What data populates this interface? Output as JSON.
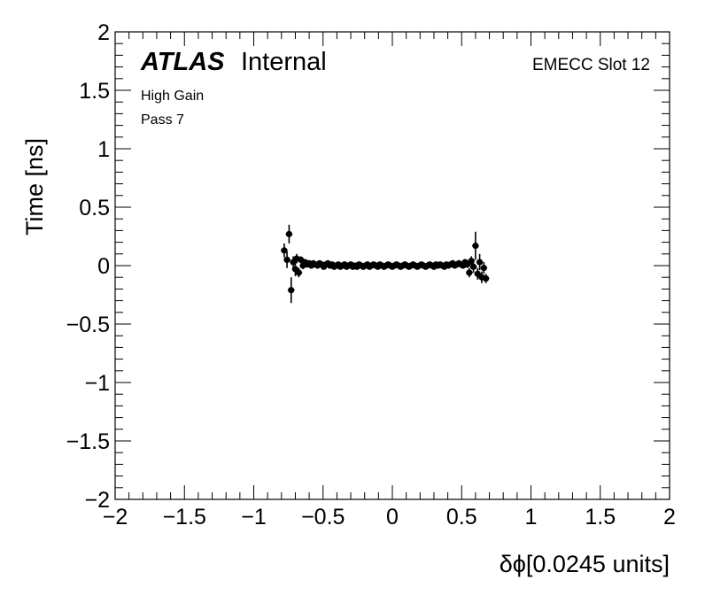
{
  "chart_data": {
    "type": "scatter",
    "title": "",
    "xlabel": "δϕ[0.0245 units]",
    "ylabel": "Time [ns]",
    "xlim": [
      -2,
      2
    ],
    "ylim": [
      -2,
      2
    ],
    "x_tick_labels": [
      "−2",
      "−1.5",
      "−1",
      "−0.5",
      "0",
      "0.5",
      "1",
      "1.5",
      "2"
    ],
    "y_tick_labels": [
      "−2",
      "−1.5",
      "−1",
      "−0.5",
      "0",
      "0.5",
      "1",
      "1.5",
      "2"
    ],
    "x_ticks": [
      -2,
      -1.5,
      -1,
      -0.5,
      0,
      0.5,
      1,
      1.5,
      2
    ],
    "y_ticks": [
      -2,
      -1.5,
      -1,
      -0.5,
      0,
      0.5,
      1,
      1.5,
      2
    ],
    "grid": false,
    "legend": "none",
    "labels": {
      "experiment": "ATLAS",
      "status": "Internal",
      "gain": "High Gain",
      "pass": "Pass 7",
      "slot": "EMECC Slot 12"
    },
    "colors": {
      "marker": "#000000",
      "frame": "#000000",
      "background": "#ffffff"
    },
    "series": [
      {
        "points": [
          {
            "x": -0.78,
            "y": 0.13,
            "err": 0.06
          },
          {
            "x": -0.76,
            "y": 0.05,
            "err": 0.07
          },
          {
            "x": -0.745,
            "y": 0.27,
            "err": 0.08
          },
          {
            "x": -0.73,
            "y": -0.21,
            "err": 0.11
          },
          {
            "x": -0.715,
            "y": 0.03,
            "err": 0.05
          },
          {
            "x": -0.7,
            "y": -0.03,
            "err": 0.06
          },
          {
            "x": -0.69,
            "y": 0.06,
            "err": 0.04
          },
          {
            "x": -0.675,
            "y": -0.06,
            "err": 0.04
          },
          {
            "x": -0.66,
            "y": 0.05,
            "err": 0.03
          },
          {
            "x": -0.645,
            "y": 0.0,
            "err": 0.03
          },
          {
            "x": -0.63,
            "y": 0.03,
            "err": 0.02
          },
          {
            "x": -0.615,
            "y": 0.01,
            "err": 0.02
          },
          {
            "x": -0.6,
            "y": 0.02,
            "err": 0.02
          },
          {
            "x": -0.585,
            "y": 0.0,
            "err": 0.015
          },
          {
            "x": -0.57,
            "y": 0.02,
            "err": 0.015
          },
          {
            "x": -0.555,
            "y": 0.01,
            "err": 0.015
          },
          {
            "x": -0.54,
            "y": 0.0,
            "err": 0.015
          },
          {
            "x": -0.525,
            "y": 0.02,
            "err": 0.015
          },
          {
            "x": -0.51,
            "y": 0.01,
            "err": 0.015
          },
          {
            "x": -0.495,
            "y": -0.01,
            "err": 0.015
          },
          {
            "x": -0.48,
            "y": 0.01,
            "err": 0.015
          },
          {
            "x": -0.465,
            "y": 0.02,
            "err": 0.015
          },
          {
            "x": -0.45,
            "y": 0.0,
            "err": 0.015
          },
          {
            "x": -0.435,
            "y": 0.01,
            "err": 0.015
          },
          {
            "x": -0.42,
            "y": -0.01,
            "err": 0.015
          },
          {
            "x": -0.405,
            "y": 0.0,
            "err": 0.015
          },
          {
            "x": -0.39,
            "y": 0.01,
            "err": 0.015
          },
          {
            "x": -0.375,
            "y": -0.01,
            "err": 0.015
          },
          {
            "x": -0.36,
            "y": 0.0,
            "err": 0.015
          },
          {
            "x": -0.345,
            "y": 0.01,
            "err": 0.015
          },
          {
            "x": -0.33,
            "y": -0.01,
            "err": 0.015
          },
          {
            "x": -0.315,
            "y": 0.0,
            "err": 0.015
          },
          {
            "x": -0.3,
            "y": 0.01,
            "err": 0.015
          },
          {
            "x": -0.285,
            "y": -0.01,
            "err": 0.015
          },
          {
            "x": -0.27,
            "y": 0.0,
            "err": 0.015
          },
          {
            "x": -0.255,
            "y": -0.01,
            "err": 0.015
          },
          {
            "x": -0.24,
            "y": 0.01,
            "err": 0.015
          },
          {
            "x": -0.225,
            "y": 0.0,
            "err": 0.015
          },
          {
            "x": -0.21,
            "y": -0.01,
            "err": 0.015
          },
          {
            "x": -0.195,
            "y": 0.0,
            "err": 0.015
          },
          {
            "x": -0.18,
            "y": 0.01,
            "err": 0.015
          },
          {
            "x": -0.165,
            "y": -0.01,
            "err": 0.015
          },
          {
            "x": -0.15,
            "y": 0.0,
            "err": 0.015
          },
          {
            "x": -0.135,
            "y": 0.01,
            "err": 0.015
          },
          {
            "x": -0.12,
            "y": 0.0,
            "err": 0.015
          },
          {
            "x": -0.105,
            "y": -0.01,
            "err": 0.015
          },
          {
            "x": -0.09,
            "y": 0.01,
            "err": 0.015
          },
          {
            "x": -0.075,
            "y": 0.0,
            "err": 0.015
          },
          {
            "x": -0.06,
            "y": -0.01,
            "err": 0.015
          },
          {
            "x": -0.045,
            "y": 0.0,
            "err": 0.015
          },
          {
            "x": -0.03,
            "y": 0.01,
            "err": 0.015
          },
          {
            "x": -0.015,
            "y": 0.0,
            "err": 0.015
          },
          {
            "x": 0.0,
            "y": -0.01,
            "err": 0.015
          },
          {
            "x": 0.015,
            "y": 0.0,
            "err": 0.015
          },
          {
            "x": 0.03,
            "y": 0.01,
            "err": 0.015
          },
          {
            "x": 0.045,
            "y": 0.0,
            "err": 0.015
          },
          {
            "x": 0.06,
            "y": -0.01,
            "err": 0.015
          },
          {
            "x": 0.075,
            "y": 0.0,
            "err": 0.015
          },
          {
            "x": 0.09,
            "y": 0.01,
            "err": 0.015
          },
          {
            "x": 0.105,
            "y": 0.0,
            "err": 0.015
          },
          {
            "x": 0.12,
            "y": -0.01,
            "err": 0.015
          },
          {
            "x": 0.135,
            "y": 0.0,
            "err": 0.015
          },
          {
            "x": 0.15,
            "y": 0.01,
            "err": 0.015
          },
          {
            "x": 0.165,
            "y": 0.0,
            "err": 0.015
          },
          {
            "x": 0.18,
            "y": -0.01,
            "err": 0.015
          },
          {
            "x": 0.195,
            "y": 0.0,
            "err": 0.015
          },
          {
            "x": 0.21,
            "y": 0.01,
            "err": 0.015
          },
          {
            "x": 0.225,
            "y": 0.0,
            "err": 0.015
          },
          {
            "x": 0.24,
            "y": -0.01,
            "err": 0.015
          },
          {
            "x": 0.255,
            "y": 0.0,
            "err": 0.015
          },
          {
            "x": 0.27,
            "y": 0.01,
            "err": 0.015
          },
          {
            "x": 0.285,
            "y": 0.0,
            "err": 0.015
          },
          {
            "x": 0.3,
            "y": -0.01,
            "err": 0.015
          },
          {
            "x": 0.315,
            "y": 0.01,
            "err": 0.015
          },
          {
            "x": 0.33,
            "y": 0.0,
            "err": 0.015
          },
          {
            "x": 0.345,
            "y": 0.01,
            "err": 0.015
          },
          {
            "x": 0.36,
            "y": 0.0,
            "err": 0.015
          },
          {
            "x": 0.375,
            "y": -0.01,
            "err": 0.015
          },
          {
            "x": 0.39,
            "y": 0.01,
            "err": 0.015
          },
          {
            "x": 0.405,
            "y": 0.0,
            "err": 0.015
          },
          {
            "x": 0.42,
            "y": 0.01,
            "err": 0.015
          },
          {
            "x": 0.435,
            "y": 0.02,
            "err": 0.015
          },
          {
            "x": 0.45,
            "y": 0.0,
            "err": 0.015
          },
          {
            "x": 0.465,
            "y": 0.01,
            "err": 0.02
          },
          {
            "x": 0.48,
            "y": 0.02,
            "err": 0.02
          },
          {
            "x": 0.495,
            "y": 0.01,
            "err": 0.02
          },
          {
            "x": 0.51,
            "y": 0.0,
            "err": 0.02
          },
          {
            "x": 0.525,
            "y": 0.03,
            "err": 0.02
          },
          {
            "x": 0.54,
            "y": 0.01,
            "err": 0.03
          },
          {
            "x": 0.555,
            "y": -0.06,
            "err": 0.04
          },
          {
            "x": 0.57,
            "y": 0.04,
            "err": 0.04
          },
          {
            "x": 0.585,
            "y": -0.01,
            "err": 0.05
          },
          {
            "x": 0.6,
            "y": 0.17,
            "err": 0.12
          },
          {
            "x": 0.615,
            "y": -0.07,
            "err": 0.05
          },
          {
            "x": 0.63,
            "y": 0.03,
            "err": 0.07
          },
          {
            "x": 0.645,
            "y": -0.1,
            "err": 0.05
          },
          {
            "x": 0.66,
            "y": -0.02,
            "err": 0.05
          },
          {
            "x": 0.675,
            "y": -0.11,
            "err": 0.04
          }
        ]
      }
    ]
  }
}
